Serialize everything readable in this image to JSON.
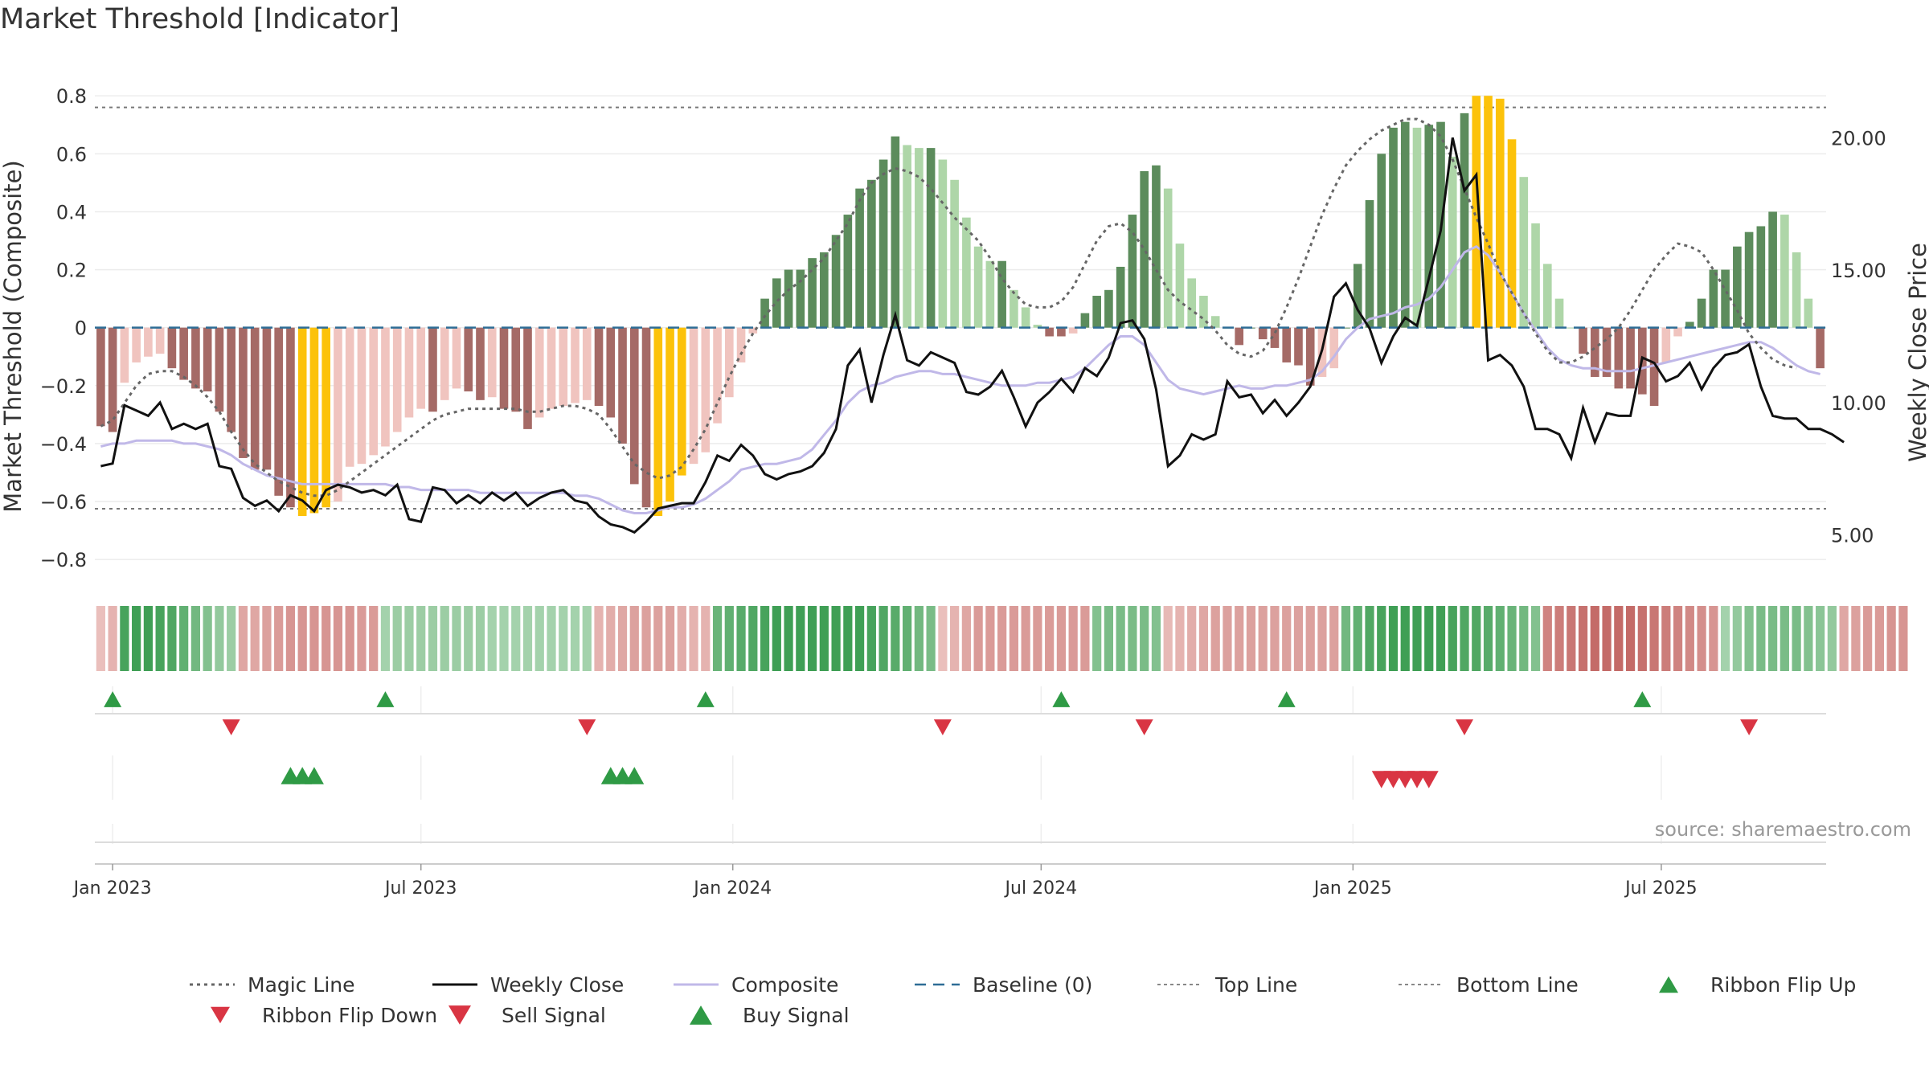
{
  "title": "Market Threshold [Indicator]",
  "source": "source: sharemaestro.com",
  "colors": {
    "hist_pos_strong": "#5c8c5c",
    "hist_pos_light": "#aed6a8",
    "hist_neg_strong": "#a56a66",
    "hist_neg_light": "#f0c4bf",
    "extreme": "#fcc20a",
    "weekly_close": "#111111",
    "composite": "#c0b8e8",
    "magic_line": "#666666",
    "baseline": "#2e6d96",
    "signal_green": "#2f9a45",
    "signal_red": "#d93543"
  },
  "chart_data": {
    "type": "bar",
    "title": "Market Threshold [Indicator]",
    "ylabel": "Market Threshold (Composite)",
    "y2label": "Weekly Close Price",
    "ylim": [
      -0.88,
      0.82
    ],
    "y2lim": [
      3.2,
      21.8
    ],
    "yticks": [
      -0.8,
      -0.6,
      -0.4,
      -0.2,
      0,
      0.2,
      0.4,
      0.6,
      0.8
    ],
    "ytick_labels": [
      "−0.8",
      "−0.6",
      "−0.4",
      "−0.2",
      "0",
      "0.2",
      "0.4",
      "0.6",
      "0.8"
    ],
    "y2ticks": [
      5,
      10,
      15,
      20
    ],
    "y2tick_labels": [
      "5.00",
      "10.00",
      "15.00",
      "20.00"
    ],
    "x_start": "2022-12-26",
    "weeks": 146,
    "xticks": [
      {
        "label": "Jan 2023",
        "week": 1
      },
      {
        "label": "Jul 2023",
        "week": 27
      },
      {
        "label": "Jan 2024",
        "week": 53.3
      },
      {
        "label": "Jul 2024",
        "week": 79.3
      },
      {
        "label": "Jan 2025",
        "week": 105.6
      },
      {
        "label": "Jul 2025",
        "week": 131.6
      }
    ],
    "top_line": 0.76,
    "bottom_line": -0.625,
    "grid": true,
    "legend_position": "bottom",
    "histogram": [
      -0.34,
      -0.36,
      -0.19,
      -0.12,
      -0.1,
      -0.09,
      -0.14,
      -0.18,
      -0.21,
      -0.22,
      -0.29,
      -0.36,
      -0.45,
      -0.49,
      -0.49,
      -0.58,
      -0.62,
      -0.65,
      -0.64,
      -0.62,
      -0.6,
      -0.48,
      -0.47,
      -0.44,
      -0.41,
      -0.36,
      -0.31,
      -0.28,
      -0.29,
      -0.25,
      -0.21,
      -0.22,
      -0.25,
      -0.24,
      -0.28,
      -0.29,
      -0.35,
      -0.31,
      -0.28,
      -0.27,
      -0.26,
      -0.25,
      -0.27,
      -0.31,
      -0.4,
      -0.54,
      -0.62,
      -0.65,
      -0.6,
      -0.51,
      -0.47,
      -0.43,
      -0.33,
      -0.24,
      -0.12,
      -0.02,
      0.1,
      0.17,
      0.2,
      0.2,
      0.24,
      0.26,
      0.32,
      0.39,
      0.48,
      0.51,
      0.58,
      0.66,
      0.63,
      0.62,
      0.62,
      0.58,
      0.51,
      0.38,
      0.28,
      0.23,
      0.23,
      0.13,
      0.07,
      0.01,
      -0.03,
      -0.03,
      -0.02,
      0.05,
      0.11,
      0.13,
      0.21,
      0.39,
      0.54,
      0.56,
      0.48,
      0.29,
      0.17,
      0.11,
      0.04,
      0.0,
      -0.06,
      0.0,
      -0.04,
      -0.07,
      -0.12,
      -0.13,
      -0.2,
      -0.17,
      -0.14,
      0.0,
      0.22,
      0.44,
      0.6,
      0.69,
      0.71,
      0.69,
      0.7,
      0.71,
      0.59,
      0.74,
      0.8,
      0.8,
      0.79,
      0.65,
      0.52,
      0.36,
      0.22,
      0.1,
      0.0,
      -0.09,
      -0.17,
      -0.17,
      -0.21,
      -0.21,
      -0.23,
      -0.27,
      -0.12,
      -0.03,
      0.02,
      0.1,
      0.2,
      0.2,
      0.28,
      0.33,
      0.35,
      0.4,
      0.39,
      0.26,
      0.1,
      -0.14
    ],
    "extreme_bars": [
      17,
      18,
      19,
      47,
      48,
      49,
      116,
      117,
      118,
      119
    ],
    "weekly_close": [
      7.6,
      7.7,
      9.9,
      9.7,
      9.5,
      10.0,
      9.0,
      9.2,
      9.0,
      9.2,
      7.6,
      7.5,
      6.4,
      6.1,
      6.3,
      5.9,
      6.5,
      6.3,
      5.9,
      6.7,
      6.9,
      6.8,
      6.6,
      6.7,
      6.5,
      6.9,
      5.6,
      5.5,
      6.8,
      6.7,
      6.2,
      6.5,
      6.2,
      6.6,
      6.3,
      6.6,
      6.1,
      6.4,
      6.6,
      6.7,
      6.3,
      6.2,
      5.7,
      5.4,
      5.3,
      5.1,
      5.5,
      6.0,
      6.1,
      6.2,
      6.2,
      7.0,
      8.0,
      7.8,
      8.4,
      8.0,
      7.3,
      7.1,
      7.3,
      7.4,
      7.6,
      8.1,
      9.0,
      11.4,
      12.0,
      10.0,
      11.8,
      13.3,
      11.6,
      11.4,
      11.9,
      11.7,
      11.5,
      10.4,
      10.3,
      10.6,
      11.2,
      10.2,
      9.1,
      10.0,
      10.4,
      10.9,
      10.4,
      11.3,
      11.0,
      11.7,
      13.0,
      13.1,
      12.4,
      10.5,
      7.6,
      8.0,
      8.8,
      8.6,
      8.8,
      10.8,
      10.2,
      10.3,
      9.6,
      10.1,
      9.5,
      10.0,
      10.6,
      12.0,
      14.0,
      14.5,
      13.5,
      12.8,
      11.5,
      12.5,
      13.2,
      12.9,
      14.7,
      16.5,
      20.0,
      18.0,
      18.6,
      11.6,
      11.8,
      11.4,
      10.6,
      9.0,
      9.0,
      8.8,
      7.9,
      9.8,
      8.5,
      9.6,
      9.5,
      9.5,
      11.7,
      11.5,
      10.8,
      11.0,
      11.5,
      10.5,
      11.3,
      11.8,
      11.9,
      12.2,
      10.6,
      9.5,
      9.4,
      9.4,
      9.0,
      9.0,
      8.8,
      8.5
    ],
    "composite": [
      -0.41,
      -0.4,
      -0.4,
      -0.39,
      -0.39,
      -0.39,
      -0.39,
      -0.4,
      -0.4,
      -0.41,
      -0.42,
      -0.44,
      -0.47,
      -0.49,
      -0.51,
      -0.52,
      -0.53,
      -0.54,
      -0.54,
      -0.54,
      -0.54,
      -0.54,
      -0.54,
      -0.54,
      -0.54,
      -0.55,
      -0.55,
      -0.56,
      -0.56,
      -0.56,
      -0.56,
      -0.56,
      -0.57,
      -0.57,
      -0.57,
      -0.57,
      -0.57,
      -0.57,
      -0.57,
      -0.57,
      -0.58,
      -0.58,
      -0.59,
      -0.61,
      -0.63,
      -0.64,
      -0.64,
      -0.63,
      -0.62,
      -0.62,
      -0.61,
      -0.59,
      -0.56,
      -0.53,
      -0.49,
      -0.48,
      -0.47,
      -0.47,
      -0.46,
      -0.45,
      -0.42,
      -0.37,
      -0.32,
      -0.26,
      -0.22,
      -0.2,
      -0.19,
      -0.17,
      -0.16,
      -0.15,
      -0.15,
      -0.16,
      -0.16,
      -0.17,
      -0.18,
      -0.19,
      -0.2,
      -0.2,
      -0.2,
      -0.19,
      -0.19,
      -0.18,
      -0.17,
      -0.14,
      -0.1,
      -0.06,
      -0.03,
      -0.03,
      -0.06,
      -0.12,
      -0.18,
      -0.21,
      -0.22,
      -0.23,
      -0.22,
      -0.21,
      -0.2,
      -0.21,
      -0.21,
      -0.2,
      -0.2,
      -0.19,
      -0.18,
      -0.15,
      -0.1,
      -0.04,
      0.0,
      0.03,
      0.04,
      0.05,
      0.07,
      0.08,
      0.1,
      0.14,
      0.2,
      0.26,
      0.28,
      0.25,
      0.19,
      0.12,
      0.05,
      -0.01,
      -0.07,
      -0.11,
      -0.13,
      -0.14,
      -0.14,
      -0.15,
      -0.15,
      -0.15,
      -0.14,
      -0.13,
      -0.12,
      -0.11,
      -0.1,
      -0.09,
      -0.08,
      -0.07,
      -0.06,
      -0.05,
      -0.05,
      -0.07,
      -0.1,
      -0.13,
      -0.15,
      -0.16
    ],
    "magic_line": [
      -0.34,
      -0.32,
      -0.26,
      -0.2,
      -0.16,
      -0.15,
      -0.15,
      -0.17,
      -0.2,
      -0.24,
      -0.29,
      -0.36,
      -0.42,
      -0.47,
      -0.5,
      -0.53,
      -0.55,
      -0.57,
      -0.58,
      -0.58,
      -0.56,
      -0.53,
      -0.5,
      -0.47,
      -0.44,
      -0.41,
      -0.38,
      -0.35,
      -0.32,
      -0.3,
      -0.29,
      -0.28,
      -0.28,
      -0.28,
      -0.28,
      -0.28,
      -0.29,
      -0.29,
      -0.28,
      -0.27,
      -0.27,
      -0.28,
      -0.3,
      -0.35,
      -0.41,
      -0.47,
      -0.5,
      -0.52,
      -0.51,
      -0.48,
      -0.42,
      -0.35,
      -0.26,
      -0.17,
      -0.09,
      -0.02,
      0.04,
      0.09,
      0.13,
      0.16,
      0.2,
      0.24,
      0.3,
      0.36,
      0.44,
      0.5,
      0.53,
      0.55,
      0.54,
      0.52,
      0.48,
      0.43,
      0.38,
      0.34,
      0.3,
      0.24,
      0.17,
      0.12,
      0.08,
      0.07,
      0.07,
      0.09,
      0.14,
      0.22,
      0.3,
      0.35,
      0.36,
      0.33,
      0.27,
      0.2,
      0.13,
      0.09,
      0.06,
      0.03,
      -0.01,
      -0.06,
      -0.09,
      -0.1,
      -0.08,
      -0.02,
      0.07,
      0.17,
      0.28,
      0.39,
      0.48,
      0.56,
      0.61,
      0.65,
      0.68,
      0.7,
      0.72,
      0.72,
      0.7,
      0.66,
      0.58,
      0.48,
      0.38,
      0.29,
      0.19,
      0.12,
      0.05,
      -0.02,
      -0.08,
      -0.12,
      -0.12,
      -0.1,
      -0.07,
      -0.04,
      0.0,
      0.06,
      0.13,
      0.2,
      0.25,
      0.29,
      0.28,
      0.26,
      0.2,
      0.13,
      0.06,
      -0.02,
      -0.07,
      -0.11,
      -0.13,
      -0.14
    ],
    "ribbon": [
      -0.2,
      -0.3,
      0.85,
      0.9,
      0.9,
      0.85,
      0.8,
      0.7,
      0.6,
      0.5,
      0.4,
      0.35,
      -0.4,
      -0.4,
      -0.45,
      -0.5,
      -0.55,
      -0.55,
      -0.55,
      -0.55,
      -0.55,
      -0.55,
      -0.5,
      -0.5,
      0.3,
      0.35,
      0.35,
      0.35,
      0.35,
      0.35,
      0.35,
      0.35,
      0.35,
      0.3,
      0.3,
      0.3,
      0.3,
      0.3,
      0.3,
      0.3,
      0.3,
      0.3,
      -0.3,
      -0.35,
      -0.4,
      -0.45,
      -0.45,
      -0.45,
      -0.45,
      -0.35,
      -0.3,
      -0.3,
      0.65,
      0.7,
      0.75,
      0.8,
      0.85,
      0.9,
      0.9,
      0.9,
      0.9,
      0.9,
      0.9,
      0.9,
      0.9,
      0.85,
      0.8,
      0.75,
      0.7,
      0.6,
      0.55,
      -0.2,
      -0.3,
      -0.4,
      -0.5,
      -0.5,
      -0.5,
      -0.5,
      -0.5,
      -0.5,
      -0.5,
      -0.5,
      -0.5,
      -0.5,
      0.5,
      0.55,
      0.55,
      0.55,
      0.55,
      0.5,
      -0.25,
      -0.3,
      -0.35,
      -0.4,
      -0.45,
      -0.45,
      -0.45,
      -0.45,
      -0.45,
      -0.45,
      -0.45,
      -0.45,
      -0.45,
      -0.45,
      -0.45,
      0.6,
      0.7,
      0.8,
      0.85,
      0.9,
      0.9,
      0.9,
      0.9,
      0.9,
      0.85,
      0.8,
      0.8,
      0.75,
      0.7,
      0.65,
      0.6,
      0.5,
      -0.7,
      -0.75,
      -0.8,
      -0.85,
      -0.9,
      -0.9,
      -0.9,
      -0.9,
      -0.85,
      -0.8,
      -0.75,
      -0.7,
      -0.65,
      -0.6,
      -0.55,
      0.3,
      0.4,
      0.5,
      0.55,
      0.55,
      0.55,
      0.55,
      0.5,
      0.45,
      0.4,
      -0.4,
      -0.45,
      -0.5,
      -0.5,
      -0.55,
      -0.55
    ],
    "ribbon_flip_up": [
      1,
      24,
      51,
      81,
      100,
      130
    ],
    "ribbon_flip_down": [
      11,
      41,
      71,
      88,
      115,
      139
    ],
    "buy_signals": [
      16,
      17,
      18,
      43,
      44,
      45
    ],
    "sell_signals": [
      108,
      109,
      110,
      111,
      112
    ],
    "legend": [
      {
        "label": "Magic Line",
        "symbol": "dotted"
      },
      {
        "label": "Weekly Close",
        "symbol": "solid-black"
      },
      {
        "label": "Composite",
        "symbol": "solid-lavender"
      },
      {
        "label": "Baseline (0)",
        "symbol": "dashed-blue"
      },
      {
        "label": "Top Line",
        "symbol": "dotted-grey"
      },
      {
        "label": "Bottom Line",
        "symbol": "dotted-grey"
      },
      {
        "label": "Ribbon Flip Up",
        "symbol": "triangle-up-green"
      },
      {
        "label": "Ribbon Flip Down",
        "symbol": "triangle-down-red"
      },
      {
        "label": "Sell Signal",
        "symbol": "triangle-down-red-large"
      },
      {
        "label": "Buy Signal",
        "symbol": "triangle-up-green-large"
      }
    ]
  }
}
